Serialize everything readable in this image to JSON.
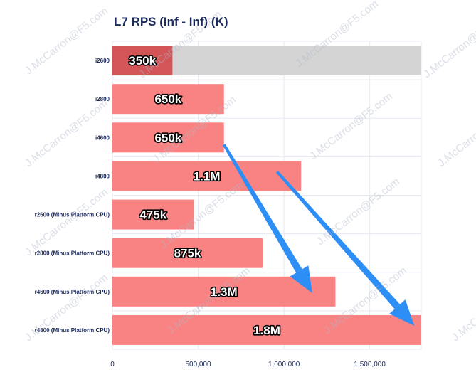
{
  "chart_data": {
    "type": "bar",
    "orientation": "horizontal",
    "title": "L7 RPS (Inf - Inf) (K)",
    "categories": [
      "i2600",
      "i2800",
      "i4600",
      "i4800",
      "r2600 (Minus Platform CPU)",
      "r2800 (Minus Platform CPU)",
      "r4600 (Minus Platform CPU)",
      "r4800 (Minus Platform CPU)"
    ],
    "values": [
      350000,
      650000,
      650000,
      1100000,
      475000,
      875000,
      1300000,
      1800000
    ],
    "data_labels": [
      "350k",
      "650k",
      "650k",
      "1.1M",
      "475k",
      "875k",
      "1.3M",
      "1.8M"
    ],
    "background_bar_value": 1800000,
    "x_ticks": [
      0,
      500000,
      1000000,
      1500000
    ],
    "x_tick_labels": [
      "0",
      "500,000",
      "1,000,000",
      "1,500,000"
    ],
    "xlim": [
      0,
      1800000
    ],
    "grid": true,
    "colors": {
      "bar": "#f98382",
      "first_bar": "#d45557",
      "background_bar": "#d4d4d4",
      "arrow": "#2d8ef5",
      "grid": "#e7e9f3",
      "text": "#1b2a5c"
    },
    "annotations": [
      {
        "type": "arrow",
        "from_category": "i4600",
        "to_category": "r4600 (Minus Platform CPU)"
      },
      {
        "type": "arrow",
        "from_category": "i4800",
        "to_category": "r4800 (Minus Platform CPU)"
      }
    ],
    "watermark": "J.McCarron@F5.com"
  }
}
